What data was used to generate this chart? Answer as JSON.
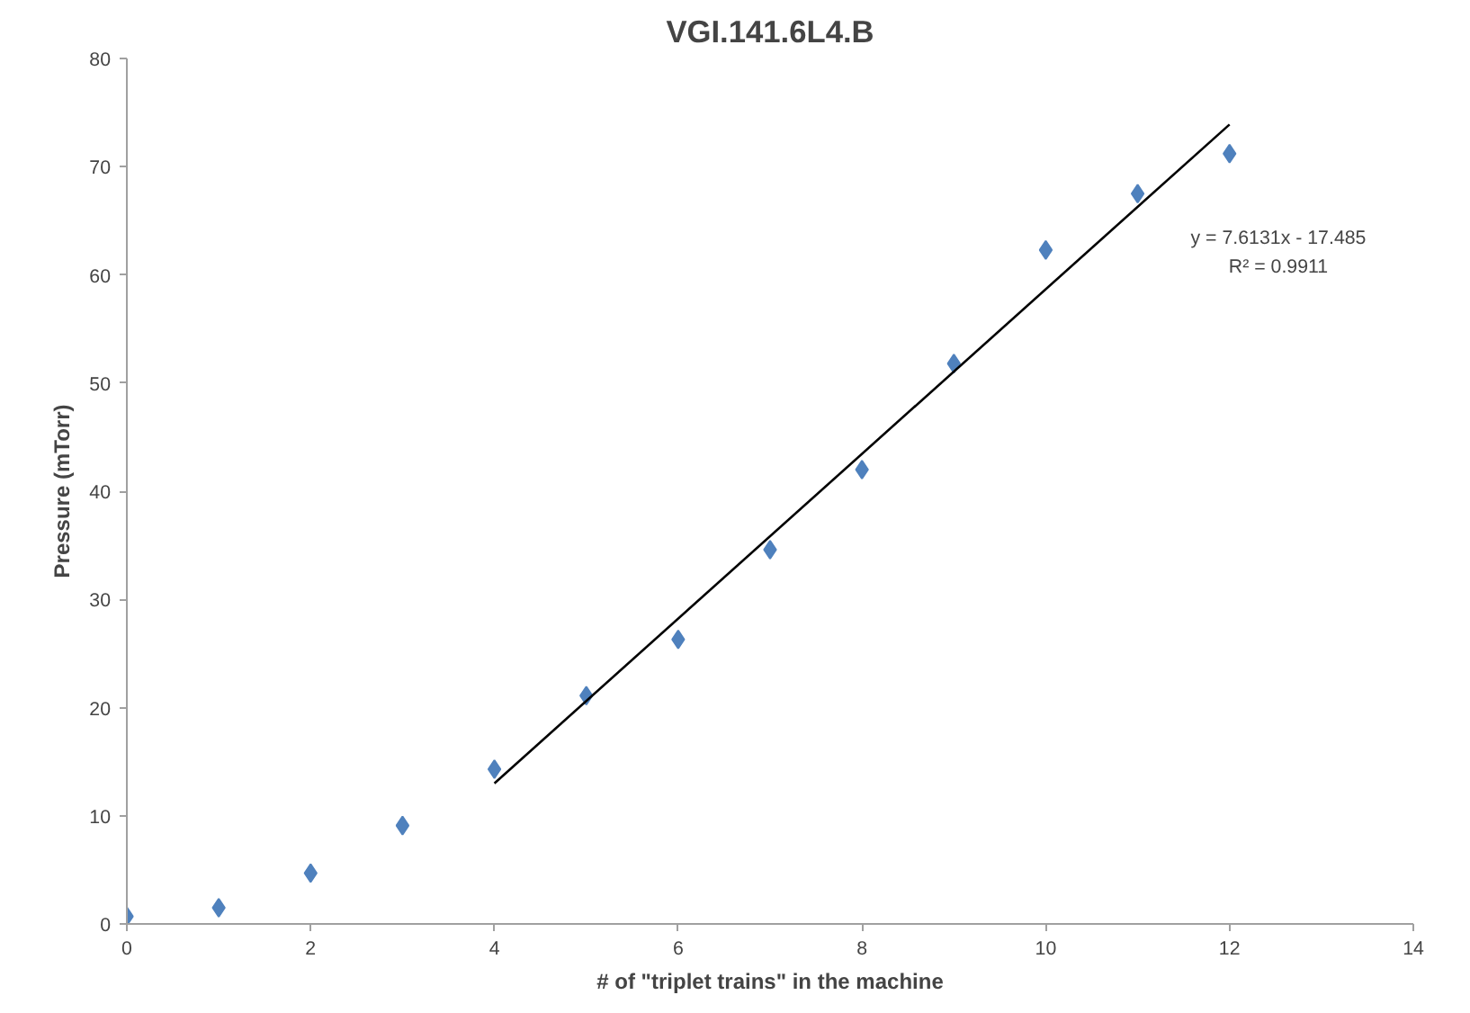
{
  "chart_data": {
    "type": "scatter",
    "title": "VGI.141.6L4.B",
    "xlabel": "# of \"triplet trains\" in the machine",
    "ylabel": "Pressure (mTorr)",
    "xlim": [
      0,
      14
    ],
    "xticks": [
      0,
      2,
      4,
      6,
      8,
      10,
      12,
      14
    ],
    "ylim": [
      0,
      80
    ],
    "yticks": [
      0,
      10,
      20,
      30,
      40,
      50,
      60,
      70,
      80
    ],
    "grid": false,
    "series": [
      {
        "marker": "diamond",
        "color": "#4f81bd",
        "x": [
          0,
          1,
          2,
          3,
          4,
          5,
          6,
          7,
          8,
          9,
          10,
          11,
          12
        ],
        "values": [
          0.7,
          1.5,
          4.7,
          9.1,
          14.3,
          21.1,
          26.3,
          34.6,
          42.0,
          51.8,
          62.3,
          67.5,
          71.2
        ]
      },
      {
        "type": "line",
        "marker": "none",
        "color": "#000000",
        "x": [
          4,
          12
        ],
        "values": [
          13.0,
          73.9
        ]
      }
    ],
    "annotations": [
      "y = 7.6131x - 17.485",
      "R² = 0.9911"
    ]
  }
}
